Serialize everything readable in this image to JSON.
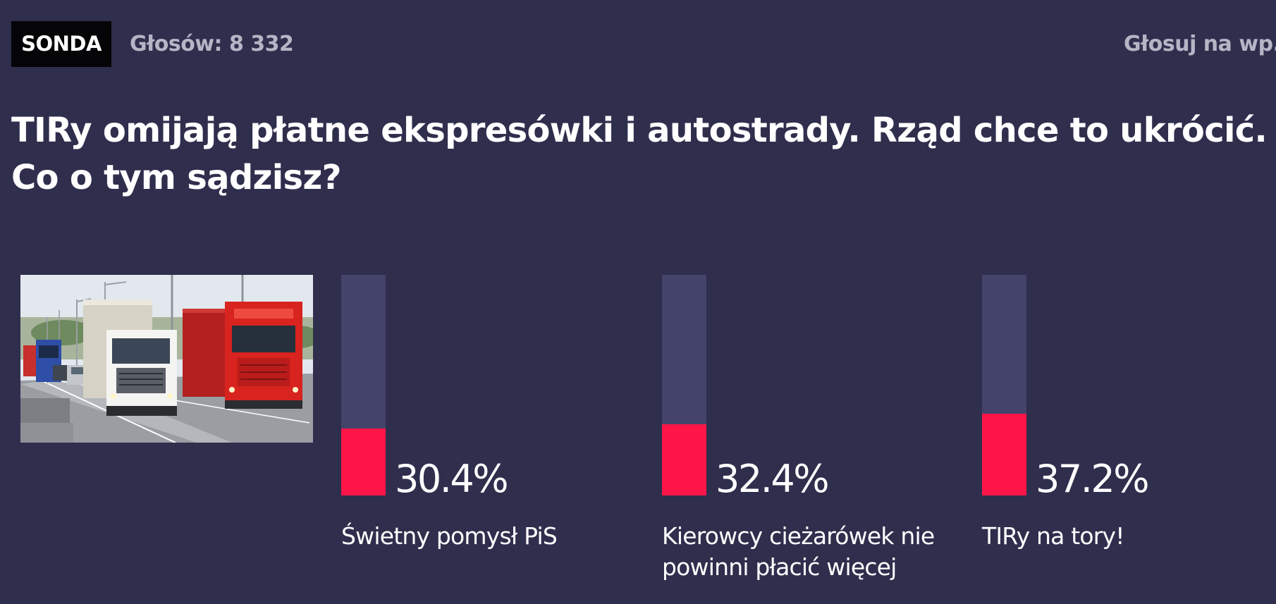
{
  "header": {
    "badge": "SONDA",
    "votes": "Głosów: 8 332",
    "vote_link": "Głosuj na wp.p"
  },
  "question": "TIRy omijają płatne ekspresówki i autostrady. Rząd chce to ukrócić. Co o tym sądzisz?",
  "options": [
    {
      "percent_label": "30.4%",
      "percent": 30.4,
      "label": "Świetny pomysł PiS"
    },
    {
      "percent_label": "32.4%",
      "percent": 32.4,
      "label": "Kierowcy cieżarówek nie powinni płacić więcej"
    },
    {
      "percent_label": "37.2%",
      "percent": 37.2,
      "label": "TIRy na tory!"
    }
  ],
  "colors": {
    "background": "#302e4d",
    "bar_track": "#44436a",
    "bar_fill": "#ff1548",
    "muted_text": "#b6b5c6"
  }
}
